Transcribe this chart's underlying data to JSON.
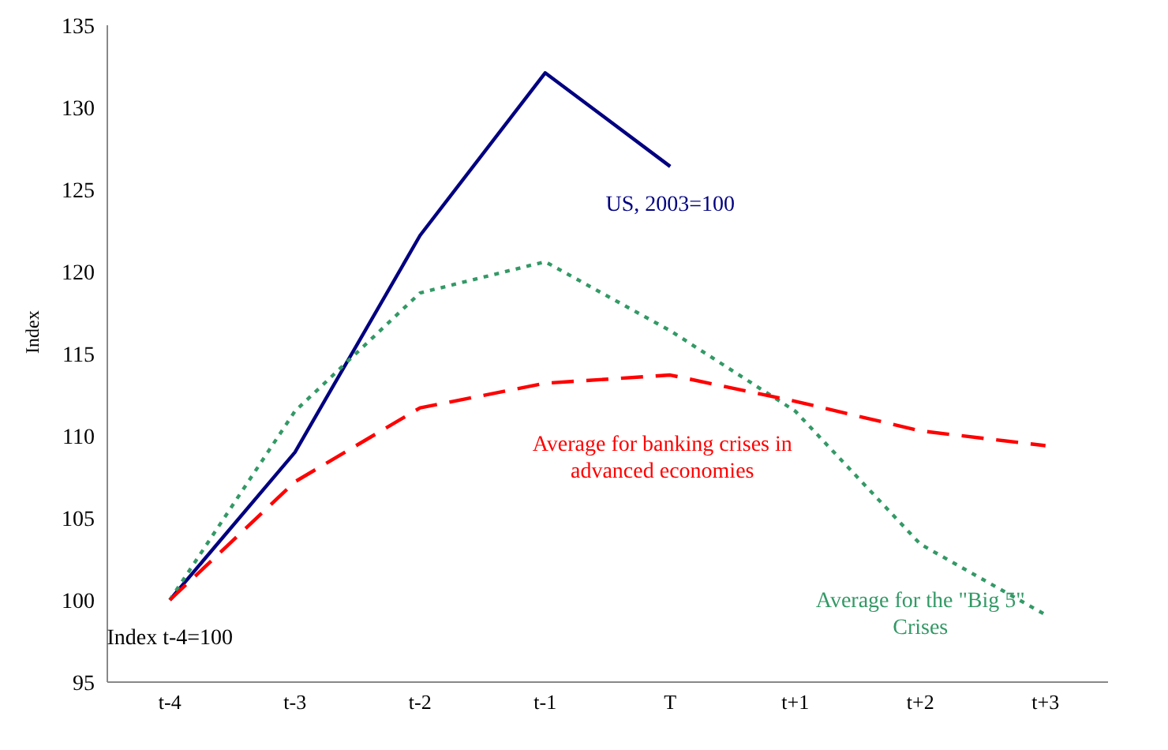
{
  "chart_data": {
    "type": "line",
    "ylabel": "Index",
    "categories": [
      "t-4",
      "t-3",
      "t-2",
      "t-1",
      "T",
      "t+1",
      "t+2",
      "t+3"
    ],
    "series": [
      {
        "name": "US, 2003=100",
        "color": "#000080",
        "line_style": "solid",
        "values": [
          100,
          109,
          122.2,
          132.1,
          126.4,
          null,
          null,
          null
        ]
      },
      {
        "name": "Average for the \"Big 5\"\nCrises",
        "color": "#339966",
        "line_style": "dotted",
        "values": [
          100,
          111.5,
          118.7,
          120.6,
          116.4,
          111.5,
          103.4,
          99.1
        ]
      },
      {
        "name": "Average for banking crises in\nadvanced economies",
        "color": "#ff0000",
        "line_style": "dashed",
        "values": [
          100,
          107.2,
          111.7,
          113.2,
          113.7,
          112.1,
          110.3,
          109.4
        ]
      }
    ],
    "annotations": [
      "Index t-4=100"
    ],
    "ylim": [
      95,
      135
    ],
    "yticks": [
      95,
      100,
      105,
      110,
      115,
      120,
      125,
      130,
      135
    ],
    "grid": false,
    "legend": false,
    "marker": "none"
  }
}
